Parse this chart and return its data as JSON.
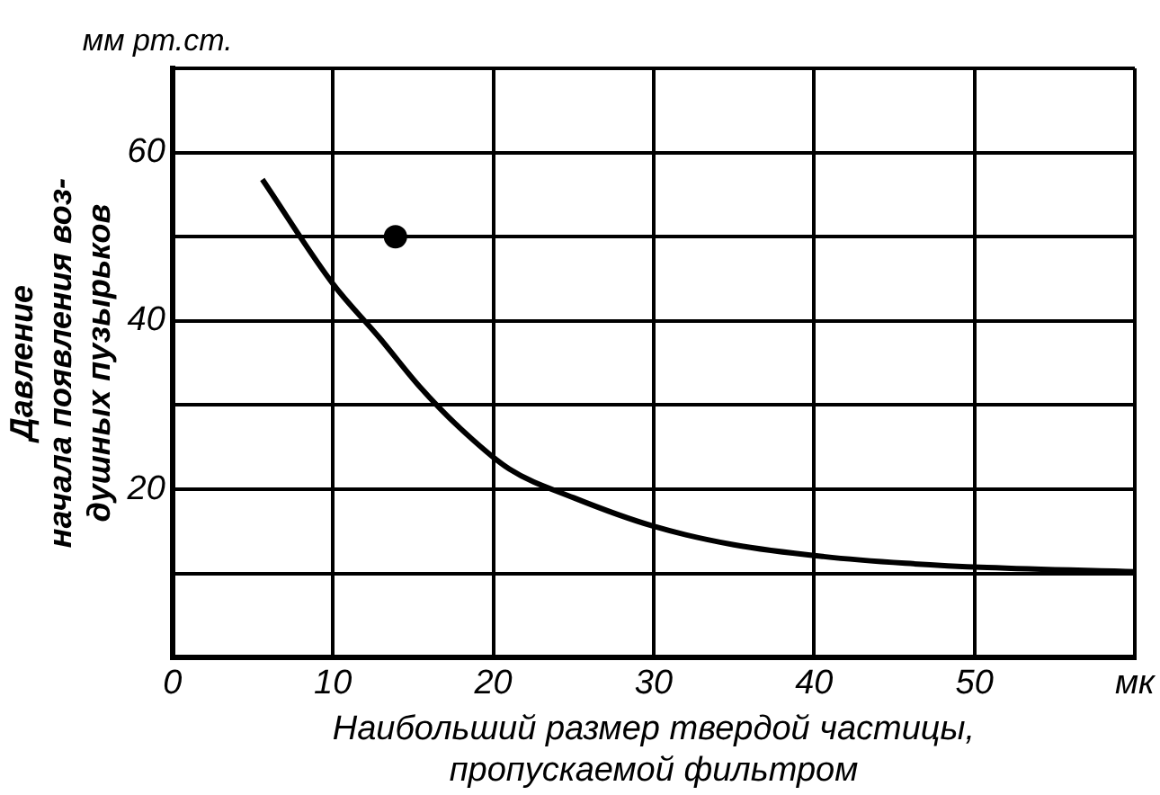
{
  "chart_data": {
    "type": "line",
    "xlabel": "Наибольший размер твердой частицы,\nпропускаемой фильтром",
    "ylabel": "Давление\nначала появления воз-\nдушных пузырьков",
    "annotations": [
      "мм рт.ст."
    ],
    "xlim": [
      0,
      60
    ],
    "xticks": [
      0,
      10,
      20,
      30,
      40,
      50,
      {
        "value": 60,
        "label": "мк"
      }
    ],
    "ylim": [
      0,
      70
    ],
    "yticks": [
      {
        "value": 0,
        "label": null
      },
      {
        "value": 10,
        "label": null
      },
      20,
      {
        "value": 30,
        "label": null
      },
      40,
      {
        "value": 50,
        "label": null
      },
      60,
      {
        "value": 70,
        "label": null
      }
    ],
    "grid": true,
    "legend": false,
    "series": [
      {
        "type": "line",
        "color": "#000000",
        "marker": "none",
        "x": [
          5.6,
          10,
          12.9,
          15.4,
          17.9,
          21,
          25,
          30,
          35,
          40.6,
          45.7,
          50.8,
          60
        ],
        "values": [
          56.8,
          44.4,
          38,
          32.2,
          27.3,
          22.4,
          19,
          15.6,
          13.4,
          12,
          11.2,
          10.7,
          10.2
        ]
      },
      {
        "type": "scatter",
        "color": "#000000",
        "marker": "circle",
        "x": [
          13.9
        ],
        "values": [
          50
        ]
      }
    ]
  }
}
